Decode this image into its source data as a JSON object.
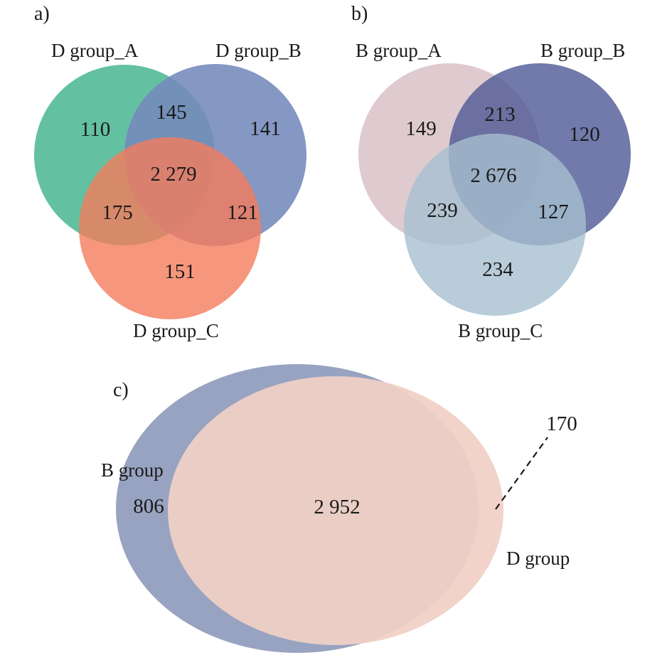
{
  "panels": {
    "a": {
      "label": "a)",
      "sets": {
        "A": {
          "name": "D group_A",
          "color": "#4db894"
        },
        "B": {
          "name": "D group_B",
          "color": "#7489bb"
        },
        "C": {
          "name": "D group_C",
          "color": "#f47c5c"
        }
      },
      "counts": {
        "only_A": "110",
        "A_B": "145",
        "only_B": "141",
        "ABC": "2 279",
        "A_C": "175",
        "B_C": "121",
        "only_C": "151"
      }
    },
    "b": {
      "label": "b)",
      "sets": {
        "A": {
          "name": "B group_A",
          "color": "#dcc5ca"
        },
        "B": {
          "name": "B group_B",
          "color": "#4e5995"
        },
        "C": {
          "name": "B group_C",
          "color": "#a6bfd0"
        }
      },
      "counts": {
        "only_A": "149",
        "A_B": "213",
        "only_B": "120",
        "ABC": "2 676",
        "A_C": "239",
        "B_C": "127",
        "only_C": "234"
      }
    },
    "c": {
      "label": "c)",
      "sets": {
        "B": {
          "name": "B group",
          "color": "#98a3c1"
        },
        "D": {
          "name": "D group",
          "color": "#f0d0c5"
        }
      },
      "counts": {
        "only_B": "806",
        "both": "2 952",
        "only_D": "170"
      }
    }
  }
}
